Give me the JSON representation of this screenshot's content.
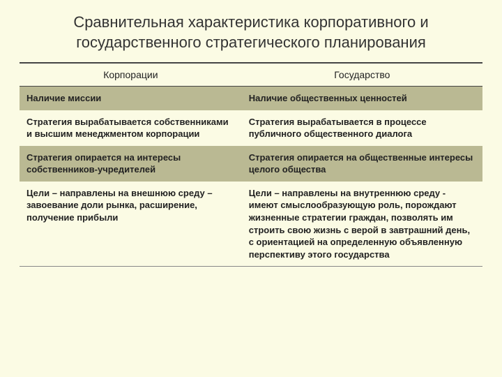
{
  "title": "Сравнительная характеристика корпоративного и государственного стратегического планирования",
  "table": {
    "type": "table",
    "background_color": "#fbfbe4",
    "shaded_row_color": "#bab993",
    "text_color": "#222222",
    "border_color": "#444444",
    "title_fontsize": 22,
    "header_fontsize": 14,
    "cell_fontsize": 13,
    "column_widths": [
      "48%",
      "52%"
    ],
    "columns": [
      "Корпорации",
      "Государство"
    ],
    "rows": [
      {
        "shaded": true,
        "cells": [
          "Наличие миссии",
          "Наличие общественных ценностей"
        ]
      },
      {
        "shaded": false,
        "cells": [
          "Стратегия вырабатывается собственниками и высшим менеджментом корпорации",
          "Стратегия вырабатывается в процессе публичного общественного диалога"
        ]
      },
      {
        "shaded": true,
        "cells": [
          "Стратегия опирается на интересы собственников-учредителей",
          "Стратегия опирается на общественные интересы целого общества"
        ]
      },
      {
        "shaded": false,
        "cells": [
          "Цели – направлены на внешнюю среду – завоевание доли рынка, расширение, получение прибыли",
          "Цели – направлены на внутреннюю среду - имеют смыслообразующую роль, порождают жизненные стратегии граждан, позволять им строить свою жизнь с верой в завтрашний день, с ориентацией на определенную объявленную перспективу этого государства"
        ]
      }
    ]
  }
}
